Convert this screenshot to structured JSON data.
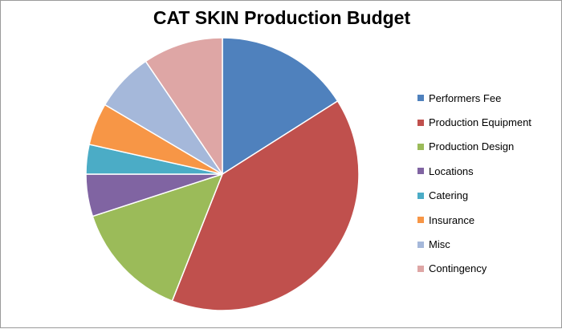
{
  "chart_data": {
    "type": "pie",
    "title": "CAT SKIN Production Budget",
    "legend_position": "right",
    "slices": [
      {
        "name": "Performers Fee",
        "value": 16.0,
        "color": "#4F81BD"
      },
      {
        "name": "Production Equipment",
        "value": 40.0,
        "color": "#C0504D"
      },
      {
        "name": "Production Design",
        "value": 14.0,
        "color": "#9BBB59"
      },
      {
        "name": "Locations",
        "value": 5.0,
        "color": "#8064A2"
      },
      {
        "name": "Catering",
        "value": 3.5,
        "color": "#4BACC6"
      },
      {
        "name": "Insurance",
        "value": 5.0,
        "color": "#F79646"
      },
      {
        "name": "Misc",
        "value": 7.0,
        "color": "#A5B8DA"
      },
      {
        "name": "Contingency",
        "value": 9.5,
        "color": "#DEA6A5"
      }
    ]
  }
}
